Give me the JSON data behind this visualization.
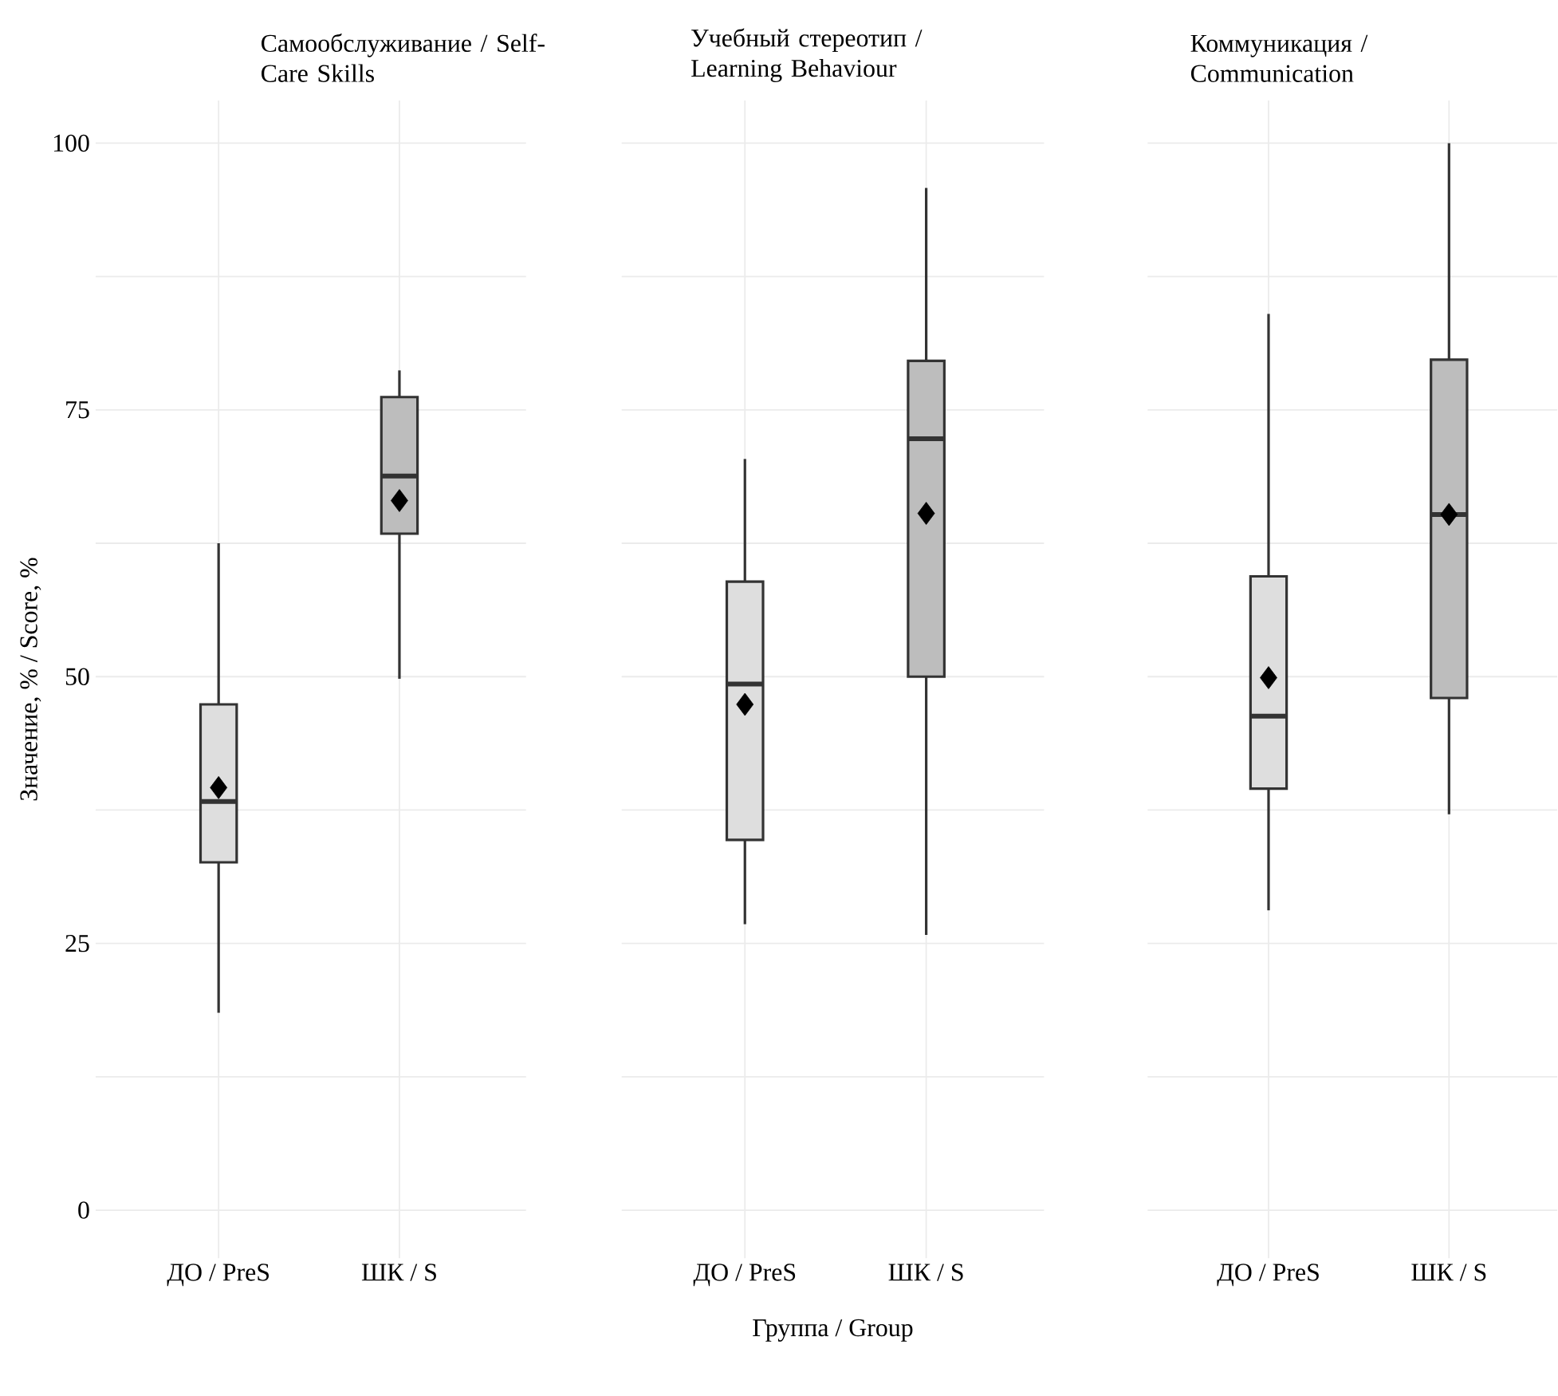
{
  "chart_data": [
    {
      "type": "box",
      "title": "Самообслуживание / Self-Care Skills",
      "ylabel": "Значение, % / Score, %",
      "categories": [
        "ДО / PreS",
        "ШК / S"
      ],
      "colors": [
        "#dedede",
        "#bdbdbd"
      ],
      "boxes": [
        {
          "low": 18.5,
          "q1": 32.6,
          "median": 38.3,
          "q3": 47.4,
          "high": 62.5,
          "mean": 39.6
        },
        {
          "low": 49.8,
          "q1": 63.4,
          "median": 68.8,
          "q3": 76.2,
          "high": 78.7,
          "mean": 66.5
        }
      ],
      "ylim": [
        -4.5,
        104
      ],
      "yticks": [
        0,
        25,
        50,
        75,
        100
      ],
      "grid": true
    },
    {
      "type": "box",
      "title": "Учебный стереотип / Learning Behaviour",
      "xlabel": "Группа / Group",
      "categories": [
        "ДО / PreS",
        "ШК / S"
      ],
      "colors": [
        "#dedede",
        "#bdbdbd"
      ],
      "boxes": [
        {
          "low": 26.8,
          "q1": 34.7,
          "median": 49.3,
          "q3": 58.9,
          "high": 70.4,
          "mean": 47.4
        },
        {
          "low": 25.8,
          "q1": 50,
          "median": 72.3,
          "q3": 79.6,
          "high": 95.8,
          "mean": 65.3
        }
      ],
      "ylim": [
        -4.5,
        104
      ],
      "yticks": [
        0,
        25,
        50,
        75,
        100
      ],
      "grid": true,
      "tick_labels": "x"
    },
    {
      "type": "box",
      "title": "Коммуникация / Communication",
      "categories": [
        "ДО / PreS",
        "ШК / S"
      ],
      "colors": [
        "#dedede",
        "#bdbdbd"
      ],
      "boxes": [
        {
          "low": 28.1,
          "q1": 39.5,
          "median": 46.3,
          "q3": 59.4,
          "high": 84,
          "mean": 49.9
        },
        {
          "low": 37.1,
          "q1": 48,
          "median": 65.2,
          "q3": 79.7,
          "high": 100,
          "mean": 65.2
        }
      ],
      "ylim": [
        -4.5,
        104
      ],
      "yticks": [
        0,
        25,
        50,
        75,
        100
      ],
      "grid": true,
      "tick_labels": "x"
    }
  ]
}
